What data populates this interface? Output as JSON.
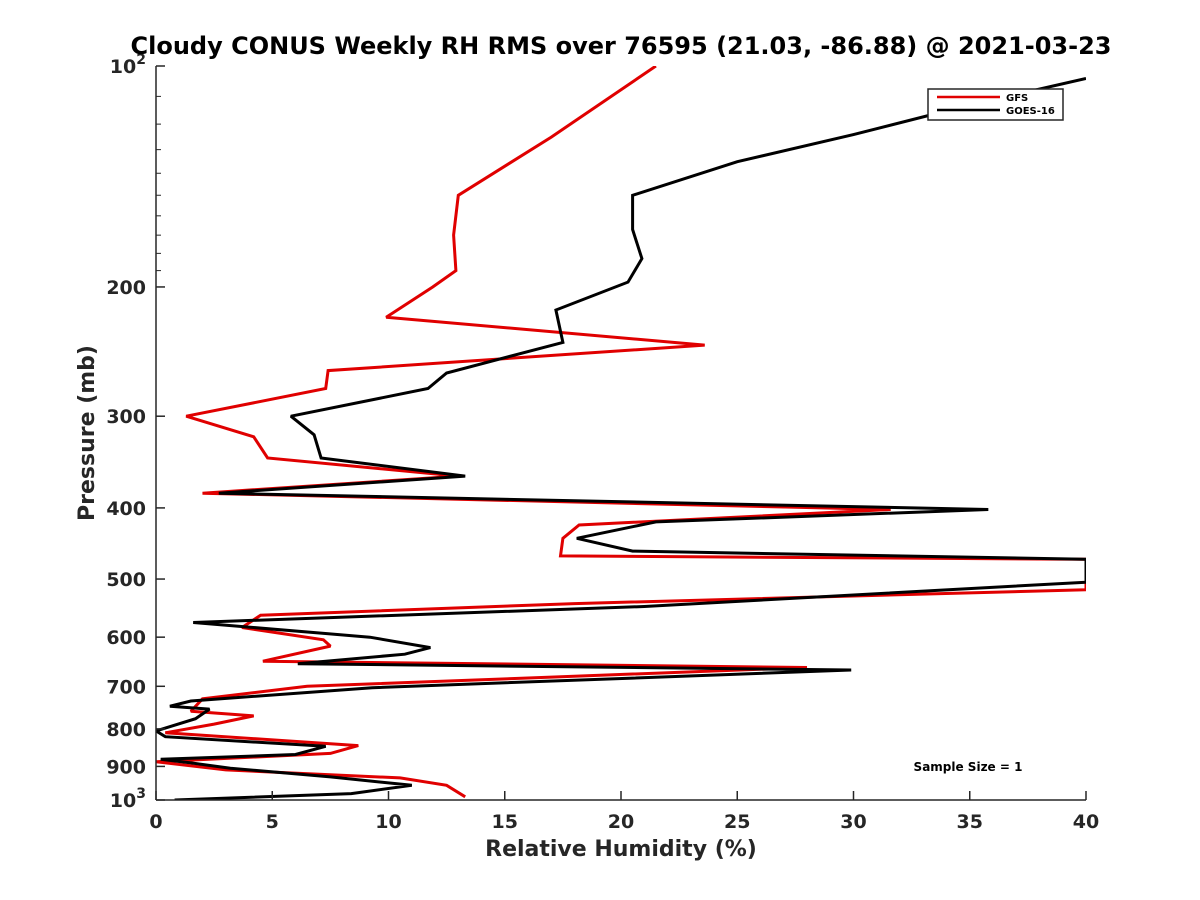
{
  "chart_data": {
    "type": "line",
    "title": "Cloudy CONUS Weekly RH RMS over 76595 (21.03, -86.88) @ 2021-03-23",
    "xlabel": "Relative Humidity (%)",
    "ylabel": "Pressure (mb)",
    "xlim": [
      0,
      40
    ],
    "ylim": [
      100,
      1000
    ],
    "y_scale": "log",
    "y_reversed": true,
    "x_ticks": [
      0,
      5,
      10,
      15,
      20,
      25,
      30,
      35,
      40
    ],
    "x_tick_labels": [
      "0",
      "5",
      "10",
      "15",
      "20",
      "25",
      "30",
      "35",
      "40"
    ],
    "y_ticks": [
      200,
      300,
      400,
      500,
      600,
      700,
      800,
      900
    ],
    "y_tick_labels": [
      "200",
      "300",
      "400",
      "500",
      "600",
      "700",
      "800",
      "900"
    ],
    "y_decade_ticks": [
      {
        "value": 100,
        "base": "10",
        "exp": "2"
      },
      {
        "value": 1000,
        "base": "10",
        "exp": "3"
      }
    ],
    "grid": false,
    "legend_position": "top-right",
    "annotation": "Sample Size = 1",
    "series": [
      {
        "name": "GFS",
        "color": "#e00000",
        "points": [
          [
            21.5,
            100
          ],
          [
            17,
            125
          ],
          [
            13,
            150
          ],
          [
            12.8,
            170
          ],
          [
            12.9,
            190
          ],
          [
            11.9,
            200
          ],
          [
            9.9,
            220
          ],
          [
            23.6,
            240
          ],
          [
            7.4,
            260
          ],
          [
            7.3,
            275
          ],
          [
            1.3,
            300
          ],
          [
            4.2,
            320
          ],
          [
            4.8,
            342
          ],
          [
            13,
            362
          ],
          [
            2.0,
            382
          ],
          [
            31.6,
            402
          ],
          [
            18.2,
            422
          ],
          [
            17.5,
            440
          ],
          [
            17.4,
            465
          ],
          [
            40,
            470
          ],
          [
            40,
            517
          ],
          [
            18,
            540
          ],
          [
            4.5,
            560
          ],
          [
            3.7,
            582
          ],
          [
            7.2,
            605
          ],
          [
            7.5,
            617
          ],
          [
            4.6,
            647
          ],
          [
            28,
            660
          ],
          [
            17,
            680
          ],
          [
            6.5,
            700
          ],
          [
            2.0,
            728
          ],
          [
            1.5,
            757
          ],
          [
            4.2,
            768
          ],
          [
            2.5,
            788
          ],
          [
            0.4,
            810
          ],
          [
            8.7,
            843
          ],
          [
            7.5,
            864
          ],
          [
            0.0,
            887
          ],
          [
            3.0,
            910
          ],
          [
            10.5,
            933
          ],
          [
            12.5,
            955
          ],
          [
            13.3,
            990
          ]
        ]
      },
      {
        "name": "GOES-16",
        "color": "#000000",
        "points": [
          [
            40,
            104
          ],
          [
            35,
            113
          ],
          [
            30,
            124
          ],
          [
            25,
            135
          ],
          [
            20.5,
            150
          ],
          [
            20.5,
            167
          ],
          [
            20.9,
            183
          ],
          [
            20.3,
            197
          ],
          [
            17.2,
            215
          ],
          [
            17.5,
            238
          ],
          [
            12.5,
            262
          ],
          [
            11.7,
            275
          ],
          [
            5.8,
            300
          ],
          [
            6.8,
            318
          ],
          [
            7.1,
            342
          ],
          [
            13.3,
            362
          ],
          [
            2.7,
            382
          ],
          [
            35.8,
            402
          ],
          [
            21.5,
            418
          ],
          [
            18.1,
            440
          ],
          [
            20.5,
            458
          ],
          [
            40,
            470
          ],
          [
            40,
            505
          ],
          [
            21,
            545
          ],
          [
            1.6,
            573
          ],
          [
            9.2,
            600
          ],
          [
            11.8,
            620
          ],
          [
            10.7,
            633
          ],
          [
            6.1,
            652
          ],
          [
            29.9,
            665
          ],
          [
            9.3,
            703
          ],
          [
            1.5,
            733
          ],
          [
            0.6,
            745
          ],
          [
            2.3,
            752
          ],
          [
            1.7,
            775
          ],
          [
            0.0,
            805
          ],
          [
            0.4,
            820
          ],
          [
            7.3,
            845
          ],
          [
            6.0,
            867
          ],
          [
            0.2,
            880
          ],
          [
            1.5,
            890
          ],
          [
            3.2,
            905
          ],
          [
            7.5,
            930
          ],
          [
            11.0,
            955
          ],
          [
            8.4,
            980
          ],
          [
            0.8,
            1000
          ]
        ]
      }
    ]
  }
}
